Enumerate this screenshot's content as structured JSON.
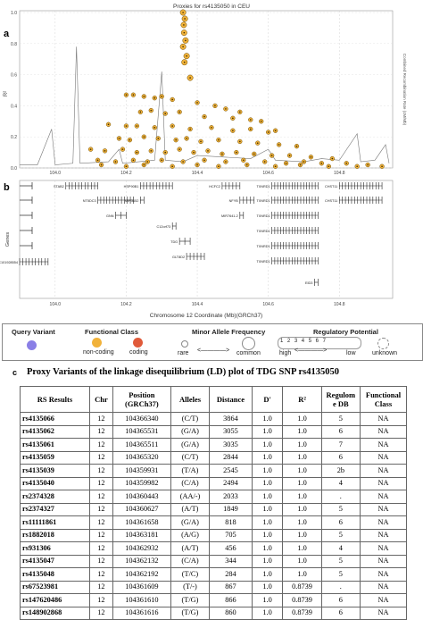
{
  "panel_a": {
    "letter": "a",
    "title": "Proxies for rs4135050 in CEU",
    "ylabel": "R²",
    "right_label": "Combined Recombination Rate (cM/Mb)",
    "y_ticks": [
      "1.0",
      "0.8",
      "0.6",
      "0.4",
      "0.2",
      "0.0"
    ],
    "x_ticks": [
      "104.0",
      "104.2",
      "104.4",
      "104.6",
      "104.8"
    ]
  },
  "panel_b": {
    "letter": "b",
    "ylabel": "Genes",
    "xlabel": "Chromosome 12 Coordinate (Mb)(GRCh37)",
    "x_ticks": [
      "104.0",
      "104.2",
      "104.4",
      "104.6",
      "104.8"
    ],
    "genes": [
      "STAB2",
      "NT5DC3",
      "GNN",
      "HSP90B1",
      "MIR3652",
      "C12orf73",
      "TDG",
      "GLT8D2",
      "HCFC2",
      "NFYB",
      "MIR7641-2",
      "TXNRD1",
      "TXNRD1",
      "TXNRD1",
      "TXNRD1",
      "TXNRD1",
      "TXNRD1",
      "EID3",
      "CHST11",
      "CHST11",
      "LOC101928554"
    ]
  },
  "legend": {
    "query_variant": "Query Variant",
    "functional_class": "Functional Class",
    "non_coding": "non-coding",
    "coding": "coding",
    "maf_title": "Minor Allele Frequency",
    "rare": "rare",
    "common": "common",
    "reg_title": "Regulatory Potential",
    "reg_circles": [
      "1",
      "2",
      "3",
      "4",
      "5",
      "6",
      "7"
    ],
    "high": "high",
    "low": "low",
    "unknown": "unknown",
    "colors": {
      "query": "#8a7fe6",
      "non_coding": "#f1b23a",
      "coding": "#e05a3a"
    }
  },
  "panel_c": {
    "letter": "c",
    "title": "Proxy Variants of the linkage disequilibrium (LD) plot of TDG SNP rs4135050",
    "headers": [
      "RS Results",
      "Chr",
      "Position (GRCh37)",
      "Alleles",
      "Distance",
      "D'",
      "R²",
      "Regulom e DB",
      "Functional Class"
    ],
    "rows": [
      [
        "rs4135066",
        "12",
        "104366340",
        "(C/T)",
        "3864",
        "1.0",
        "1.0",
        "5",
        "NA"
      ],
      [
        "rs4135062",
        "12",
        "104365531",
        "(G/A)",
        "3055",
        "1.0",
        "1.0",
        "6",
        "NA"
      ],
      [
        "rs4135061",
        "12",
        "104365511",
        "(G/A)",
        "3035",
        "1.0",
        "1.0",
        "7",
        "NA"
      ],
      [
        "rs4135059",
        "12",
        "104365320",
        "(C/T)",
        "2844",
        "1.0",
        "1.0",
        "6",
        "NA"
      ],
      [
        "rs4135039",
        "12",
        "104359931",
        "(T/A)",
        "2545",
        "1.0",
        "1.0",
        "2b",
        "NA"
      ],
      [
        "rs4135040",
        "12",
        "104359982",
        "(C/A)",
        "2494",
        "1.0",
        "1.0",
        "4",
        "NA"
      ],
      [
        "rs2374328",
        "12",
        "104360443",
        "(AA/-)",
        "2033",
        "1.0",
        "1.0",
        ".",
        "NA"
      ],
      [
        "rs2374327",
        "12",
        "104360627",
        "(A/T)",
        "1849",
        "1.0",
        "1.0",
        "5",
        "NA"
      ],
      [
        "rs11111861",
        "12",
        "104361658",
        "(G/A)",
        "818",
        "1.0",
        "1.0",
        "6",
        "NA"
      ],
      [
        "rs1882018",
        "12",
        "104363181",
        "(A/G)",
        "705",
        "1.0",
        "1.0",
        "5",
        "NA"
      ],
      [
        "rs931306",
        "12",
        "104362932",
        "(A/T)",
        "456",
        "1.0",
        "1.0",
        "4",
        "NA"
      ],
      [
        "rs4135047",
        "12",
        "104362132",
        "(C/A)",
        "344",
        "1.0",
        "1.0",
        "5",
        "NA"
      ],
      [
        "rs4135048",
        "12",
        "104362192",
        "(T/C)",
        "284",
        "1.0",
        "1.0",
        "5",
        "NA"
      ],
      [
        "rs67523981",
        "12",
        "104361609",
        "(T/-)",
        "867",
        "1.0",
        "0.8739",
        ".",
        "NA"
      ],
      [
        "rs147620486",
        "12",
        "104361610",
        "(T/G)",
        "866",
        "1.0",
        "0.8739",
        "6",
        "NA"
      ],
      [
        "rs148902868",
        "12",
        "104361616",
        "(T/G)",
        "860",
        "1.0",
        "0.8739",
        "6",
        "NA"
      ]
    ]
  },
  "chart_data": [
    {
      "type": "scatter",
      "title": "Proxies for rs4135050 in CEU",
      "ylabel": "R²",
      "xlim": [
        103.9,
        104.95
      ],
      "ylim": [
        0,
        1
      ],
      "grid": true,
      "x_ticks": [
        104.0,
        104.2,
        104.4,
        104.6,
        104.8
      ],
      "series": [
        {
          "values_note": "",
          "points": [
            [
              104.36,
              1.0
            ],
            [
              104.365,
              0.96
            ],
            [
              104.362,
              0.92
            ],
            [
              104.363,
              0.87
            ],
            [
              104.367,
              0.82
            ],
            [
              104.36,
              0.78
            ],
            [
              104.37,
              0.72
            ],
            [
              104.364,
              0.68
            ],
            [
              104.38,
              0.58
            ],
            [
              104.2,
              0.47
            ],
            [
              104.22,
              0.47
            ],
            [
              104.25,
              0.46
            ],
            [
              104.28,
              0.45
            ],
            [
              104.3,
              0.46
            ],
            [
              104.33,
              0.44
            ],
            [
              104.4,
              0.42
            ],
            [
              104.45,
              0.4
            ],
            [
              104.48,
              0.38
            ],
            [
              104.52,
              0.36
            ],
            [
              104.24,
              0.36
            ],
            [
              104.27,
              0.37
            ],
            [
              104.31,
              0.35
            ],
            [
              104.35,
              0.36
            ],
            [
              104.42,
              0.33
            ],
            [
              104.5,
              0.32
            ],
            [
              104.55,
              0.31
            ],
            [
              104.58,
              0.3
            ],
            [
              104.15,
              0.28
            ],
            [
              104.2,
              0.27
            ],
            [
              104.23,
              0.27
            ],
            [
              104.28,
              0.26
            ],
            [
              104.33,
              0.27
            ],
            [
              104.38,
              0.25
            ],
            [
              104.44,
              0.26
            ],
            [
              104.5,
              0.24
            ],
            [
              104.55,
              0.25
            ],
            [
              104.6,
              0.23
            ],
            [
              104.62,
              0.24
            ],
            [
              104.18,
              0.19
            ],
            [
              104.21,
              0.18
            ],
            [
              104.25,
              0.2
            ],
            [
              104.29,
              0.19
            ],
            [
              104.34,
              0.18
            ],
            [
              104.37,
              0.19
            ],
            [
              104.41,
              0.17
            ],
            [
              104.46,
              0.18
            ],
            [
              104.52,
              0.17
            ],
            [
              104.57,
              0.16
            ],
            [
              104.63,
              0.15
            ],
            [
              104.68,
              0.14
            ],
            [
              104.1,
              0.12
            ],
            [
              104.14,
              0.11
            ],
            [
              104.19,
              0.12
            ],
            [
              104.23,
              0.1
            ],
            [
              104.27,
              0.11
            ],
            [
              104.31,
              0.1
            ],
            [
              104.35,
              0.12
            ],
            [
              104.39,
              0.1
            ],
            [
              104.43,
              0.11
            ],
            [
              104.47,
              0.09
            ],
            [
              104.51,
              0.1
            ],
            [
              104.56,
              0.09
            ],
            [
              104.61,
              0.08
            ],
            [
              104.66,
              0.08
            ],
            [
              104.72,
              0.07
            ],
            [
              104.78,
              0.06
            ],
            [
              104.12,
              0.05
            ],
            [
              104.17,
              0.04
            ],
            [
              104.22,
              0.05
            ],
            [
              104.26,
              0.04
            ],
            [
              104.3,
              0.05
            ],
            [
              104.36,
              0.04
            ],
            [
              104.42,
              0.05
            ],
            [
              104.48,
              0.04
            ],
            [
              104.53,
              0.05
            ],
            [
              104.59,
              0.04
            ],
            [
              104.65,
              0.03
            ],
            [
              104.7,
              0.04
            ],
            [
              104.75,
              0.03
            ],
            [
              104.82,
              0.03
            ],
            [
              104.88,
              0.02
            ],
            [
              104.13,
              0.02
            ],
            [
              104.2,
              0.01
            ],
            [
              104.25,
              0.02
            ],
            [
              104.33,
              0.01
            ],
            [
              104.4,
              0.02
            ],
            [
              104.46,
              0.01
            ],
            [
              104.54,
              0.02
            ],
            [
              104.62,
              0.01
            ],
            [
              104.69,
              0.02
            ],
            [
              104.77,
              0.01
            ],
            [
              104.85,
              0.01
            ],
            [
              104.92,
              0.01
            ]
          ]
        }
      ]
    },
    {
      "type": "table",
      "title": "Proxy Variants of the linkage disequilibrium (LD) plot of TDG SNP rs4135050",
      "columns": [
        "RS Results",
        "Chr",
        "Position (GRCh37)",
        "Alleles",
        "Distance",
        "D'",
        "R²",
        "Regulom e DB",
        "Functional Class"
      ]
    }
  ]
}
